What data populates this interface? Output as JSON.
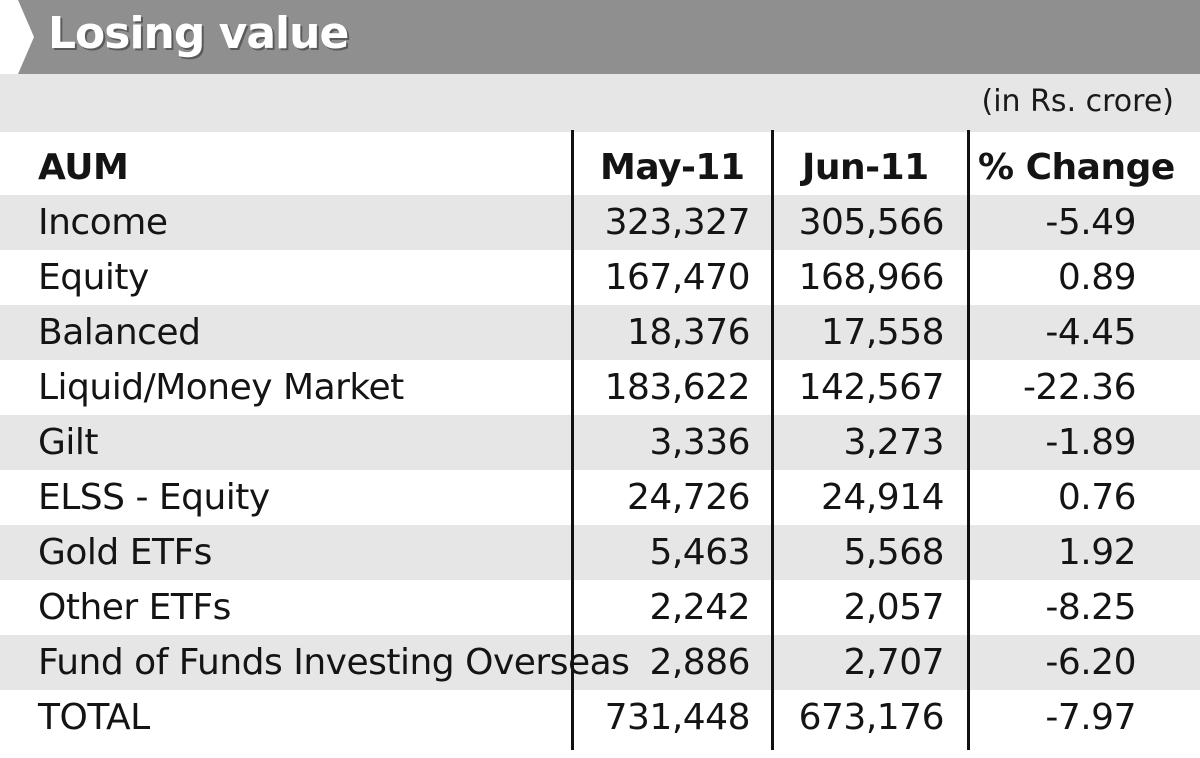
{
  "title": "Losing value",
  "units": "(in Rs. crore)",
  "chart_data": {
    "type": "table",
    "columns": [
      "AUM",
      "May-11",
      "Jun-11",
      "% Change"
    ],
    "rows": [
      {
        "name": "Income",
        "may": "323,327",
        "jun": "305,566",
        "change": "-5.49"
      },
      {
        "name": "Equity",
        "may": "167,470",
        "jun": "168,966",
        "change": "0.89"
      },
      {
        "name": "Balanced",
        "may": "18,376",
        "jun": "17,558",
        "change": "-4.45"
      },
      {
        "name": "Liquid/Money Market",
        "may": "183,622",
        "jun": "142,567",
        "change": "-22.36"
      },
      {
        "name": "Gilt",
        "may": "3,336",
        "jun": "3,273",
        "change": "-1.89"
      },
      {
        "name": "ELSS - Equity",
        "may": "24,726",
        "jun": "24,914",
        "change": "0.76"
      },
      {
        "name": "Gold ETFs",
        "may": "5,463",
        "jun": "5,568",
        "change": "1.92"
      },
      {
        "name": "Other ETFs",
        "may": "2,242",
        "jun": "2,057",
        "change": "-8.25"
      },
      {
        "name": "Fund of Funds Investing Overseas",
        "may": "2,886",
        "jun": "2,707",
        "change": "-6.20"
      },
      {
        "name": "TOTAL",
        "may": "731,448",
        "jun": "673,176",
        "change": "-7.97"
      }
    ]
  }
}
